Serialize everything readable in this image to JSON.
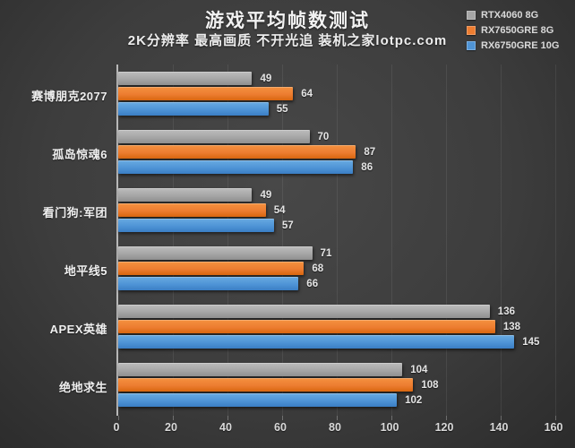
{
  "header": {
    "title": "游戏平均帧数测试",
    "subtitle": "2K分辨率 最高画质 不开光追  装机之家lotpc.com"
  },
  "colors": {
    "background_center": "#484848",
    "background_edge": "#2b2b2b",
    "series_gray": "#a6a6a6",
    "series_orange": "#ed7d31",
    "series_blue": "#4f94d6",
    "text": "#f2f2f2",
    "axis_line": "#b8b8b8"
  },
  "chart_data": {
    "type": "bar",
    "orientation": "horizontal",
    "title": "游戏平均帧数测试",
    "subtitle": "2K分辨率 最高画质 不开光追  装机之家lotpc.com",
    "categories": [
      "赛博朋克2077",
      "孤岛惊魂6",
      "看门狗:军团",
      "地平线5",
      "APEX英雄",
      "绝地求生"
    ],
    "series": [
      {
        "name": "RTX4060 8G",
        "color": "#a6a6a6",
        "values": [
          49,
          70,
          49,
          71,
          136,
          104
        ]
      },
      {
        "name": "RX7650GRE 8G",
        "color": "#ed7d31",
        "values": [
          64,
          87,
          54,
          68,
          138,
          108
        ]
      },
      {
        "name": "RX6750GRE 10G",
        "color": "#4f94d6",
        "values": [
          55,
          86,
          57,
          66,
          145,
          102
        ]
      }
    ],
    "xlim": [
      0,
      160
    ],
    "x_ticks": [
      0,
      20,
      40,
      60,
      80,
      100,
      120,
      140,
      160
    ],
    "grid": true,
    "legend_position": "top-right",
    "value_labels": true
  }
}
